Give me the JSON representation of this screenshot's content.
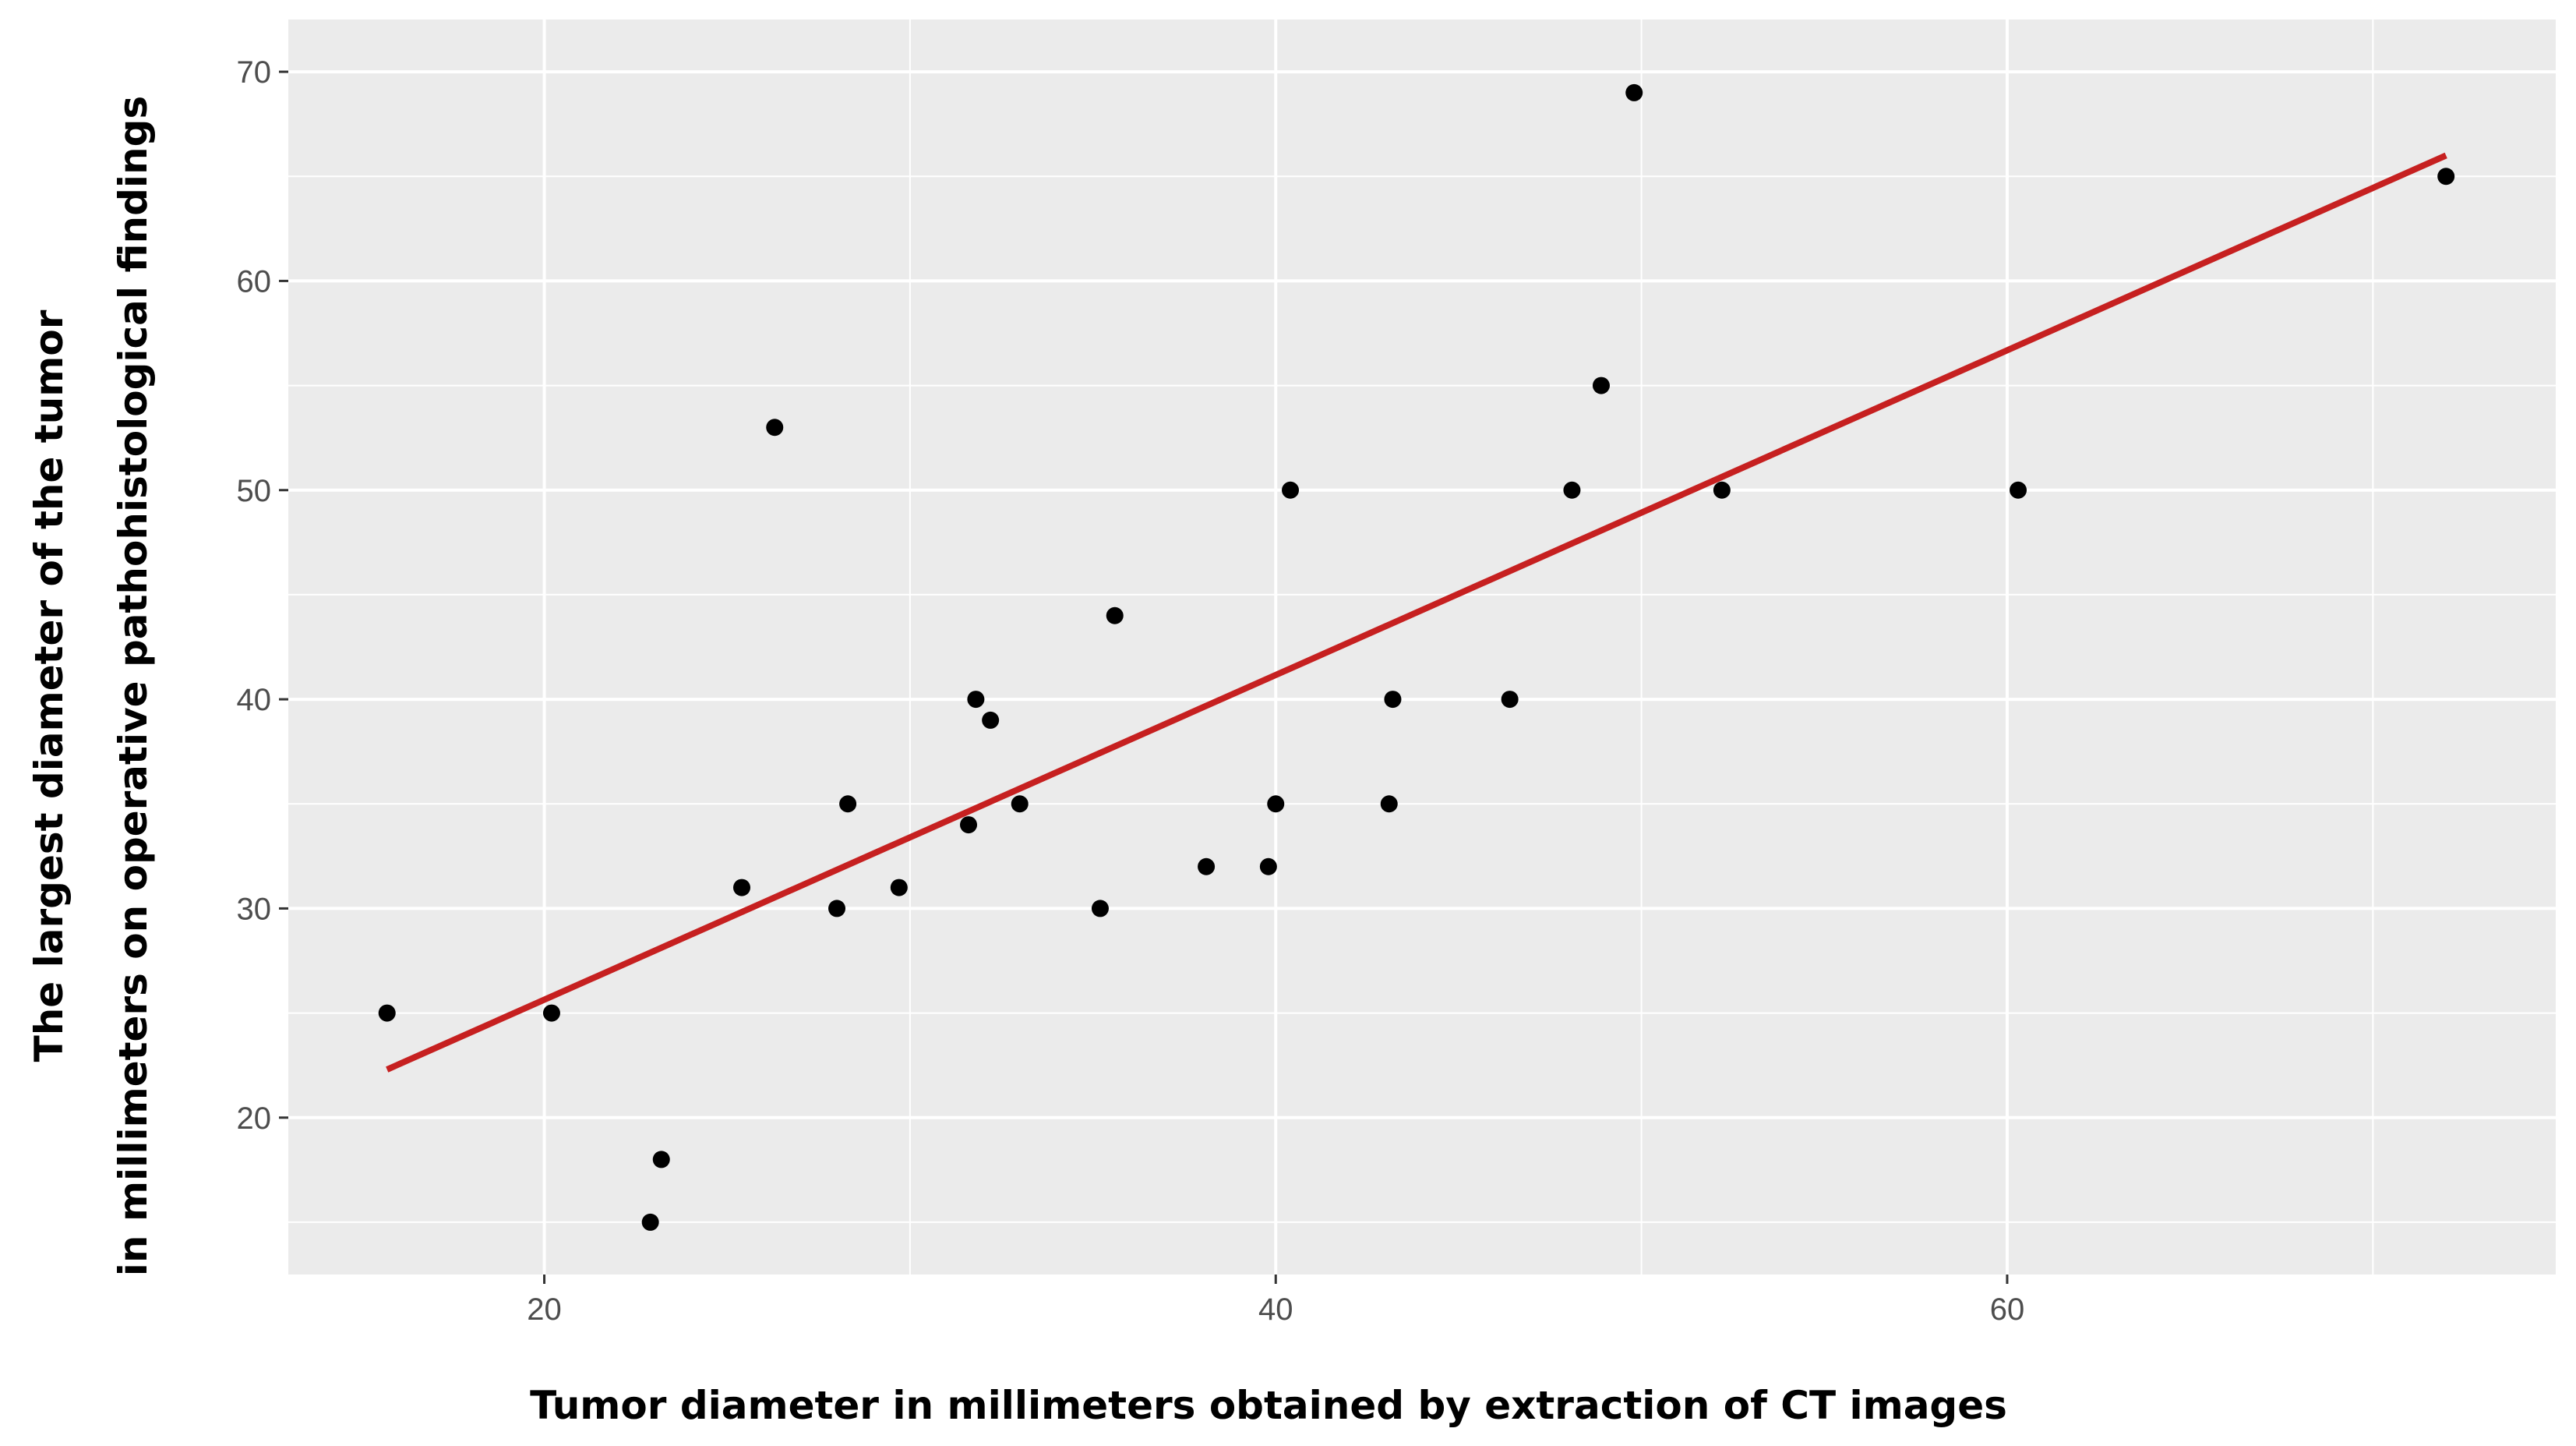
{
  "chart_data": {
    "type": "scatter",
    "title": "",
    "xlabel": "Tumor diameter in millimeters obtained by extraction of CT images",
    "ylabel": [
      "The largest diameter of the tumor",
      "in millimeters on operative pathohistological findings"
    ],
    "xlim": [
      13,
      75
    ],
    "ylim": [
      12.5,
      72.5
    ],
    "x_ticks": [
      20,
      40,
      60
    ],
    "y_ticks": [
      20,
      30,
      40,
      50,
      60,
      70
    ],
    "x_minor_grid": [
      30,
      50,
      70
    ],
    "y_minor_grid": [
      15,
      25,
      35,
      45,
      55,
      65
    ],
    "grid": true,
    "panel_background": "#ebebeb",
    "grid_color": "#ffffff",
    "point_color": "#000000",
    "fit_line_color": "#c62020",
    "points": [
      {
        "x": 15.7,
        "y": 25
      },
      {
        "x": 20.2,
        "y": 25
      },
      {
        "x": 22.9,
        "y": 15
      },
      {
        "x": 23.2,
        "y": 18
      },
      {
        "x": 25.4,
        "y": 31
      },
      {
        "x": 26.3,
        "y": 53
      },
      {
        "x": 28.0,
        "y": 30
      },
      {
        "x": 28.3,
        "y": 35
      },
      {
        "x": 29.7,
        "y": 31
      },
      {
        "x": 31.6,
        "y": 34
      },
      {
        "x": 31.8,
        "y": 40
      },
      {
        "x": 32.2,
        "y": 39
      },
      {
        "x": 33.0,
        "y": 35
      },
      {
        "x": 35.2,
        "y": 30
      },
      {
        "x": 35.6,
        "y": 44
      },
      {
        "x": 38.1,
        "y": 32
      },
      {
        "x": 39.8,
        "y": 32
      },
      {
        "x": 40.0,
        "y": 35
      },
      {
        "x": 40.4,
        "y": 50
      },
      {
        "x": 43.1,
        "y": 35
      },
      {
        "x": 43.2,
        "y": 40
      },
      {
        "x": 46.4,
        "y": 40
      },
      {
        "x": 48.1,
        "y": 50
      },
      {
        "x": 48.9,
        "y": 55
      },
      {
        "x": 49.8,
        "y": 69
      },
      {
        "x": 52.2,
        "y": 50
      },
      {
        "x": 60.3,
        "y": 50
      },
      {
        "x": 72.0,
        "y": 65
      }
    ],
    "fit_line": {
      "x": [
        15.7,
        72.0
      ],
      "y": [
        22.3,
        66.0
      ]
    }
  }
}
